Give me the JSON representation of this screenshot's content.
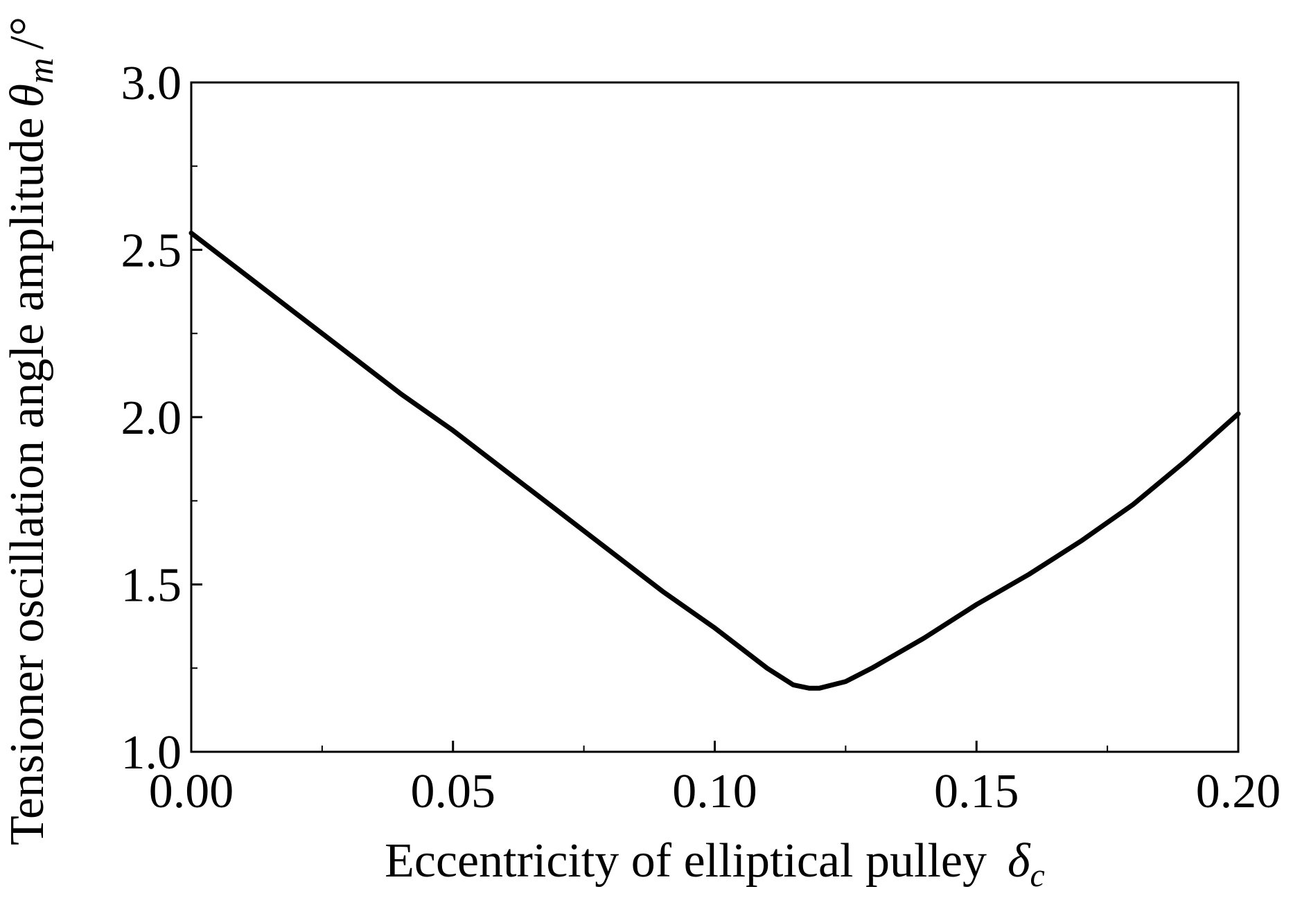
{
  "chart_data": {
    "type": "line",
    "xlabel": "Eccentricity of elliptical pulley",
    "xlabel_symbol": "δ",
    "xlabel_symbol_subscript": "c",
    "ylabel": "Tensioner oscillation angle amplitude",
    "ylabel_symbol": "θ",
    "ylabel_symbol_subscript": "m",
    "ylabel_unit": "/°",
    "xlim": [
      0.0,
      0.2
    ],
    "ylim": [
      1.0,
      3.0
    ],
    "x_ticks": [
      "0.00",
      "0.05",
      "0.10",
      "0.15",
      "0.20"
    ],
    "y_ticks": [
      "1.0",
      "1.5",
      "2.0",
      "2.5",
      "3.0"
    ],
    "grid": false,
    "legend": "none",
    "line_color": "#000000",
    "series": [
      {
        "x": [
          0.0,
          0.01,
          0.02,
          0.03,
          0.04,
          0.05,
          0.06,
          0.07,
          0.08,
          0.09,
          0.1,
          0.105,
          0.11,
          0.115,
          0.118,
          0.12,
          0.125,
          0.13,
          0.14,
          0.15,
          0.16,
          0.17,
          0.18,
          0.19,
          0.2
        ],
        "y": [
          2.55,
          2.43,
          2.31,
          2.19,
          2.07,
          1.96,
          1.84,
          1.72,
          1.6,
          1.48,
          1.37,
          1.31,
          1.25,
          1.2,
          1.19,
          1.19,
          1.21,
          1.25,
          1.34,
          1.44,
          1.53,
          1.63,
          1.74,
          1.87,
          2.01
        ]
      }
    ]
  }
}
